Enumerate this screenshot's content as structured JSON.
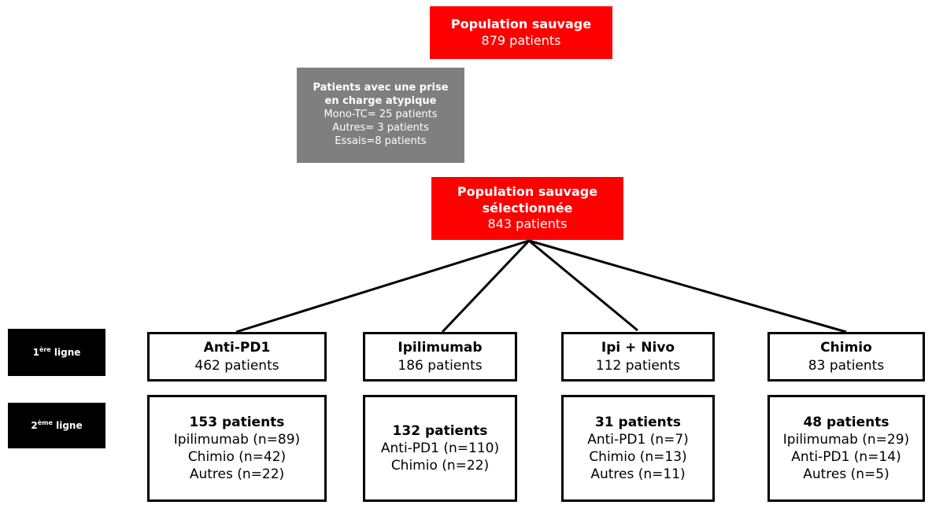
{
  "top": {
    "title": "Population sauvage",
    "count": "879 patients"
  },
  "atypical": {
    "title_lines": [
      "Patients avec une prise",
      "en charge atypique"
    ],
    "lines": [
      "Mono-TC= 25 patients",
      "Autres= 3 patients",
      "Essais=8 patients"
    ]
  },
  "selected": {
    "title_lines": [
      "Population sauvage",
      "sélectionnée"
    ],
    "count": "843 patients"
  },
  "row_labels": [
    {
      "num": "1",
      "sup": "ère",
      "text": "ligne"
    },
    {
      "num": "2",
      "sup": "ème",
      "text": "ligne"
    }
  ],
  "first_line": [
    {
      "title": "Anti-PD1",
      "count": "462 patients"
    },
    {
      "title": "Ipilimumab",
      "count": "186 patients"
    },
    {
      "title": "Ipi + Nivo",
      "count": "112 patients"
    },
    {
      "title": "Chimio",
      "count": "83 patients"
    }
  ],
  "second_line": [
    {
      "title": "153 patients",
      "lines": [
        "Ipilimumab (n=89)",
        "Chimio (n=42)",
        "Autres (n=22)"
      ]
    },
    {
      "title": "132 patients",
      "lines": [
        "Anti-PD1 (n=110)",
        "Chimio (n=22)"
      ]
    },
    {
      "title": "31 patients",
      "lines": [
        "Anti-PD1 (n=7)",
        "Chimio (n=13)",
        "Autres (n=11)"
      ]
    },
    {
      "title": "48 patients",
      "lines": [
        "Ipilimumab (n=29)",
        "Anti-PD1 (n=14)",
        "Autres (n=5)"
      ]
    }
  ]
}
